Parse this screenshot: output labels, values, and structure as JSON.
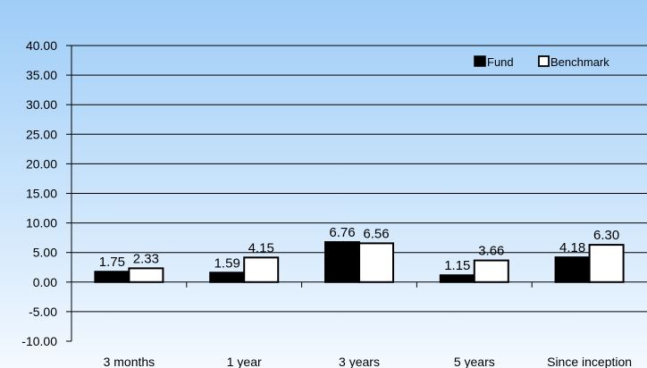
{
  "chart_data": {
    "type": "bar",
    "categories": [
      "3 months",
      "1 year",
      "3 years",
      "5 years",
      "Since inception"
    ],
    "series": [
      {
        "name": "Fund",
        "values": [
          1.75,
          1.59,
          6.76,
          1.15,
          4.18
        ],
        "labels": [
          "1.75",
          "1.59",
          "6.76",
          "1.15",
          "4.18"
        ],
        "color": "#000000"
      },
      {
        "name": "Benchmark",
        "values": [
          2.33,
          4.15,
          6.56,
          3.66,
          6.3
        ],
        "labels": [
          "2.33",
          "4.15",
          "6.56",
          "3.66",
          "6.30"
        ],
        "color": "#ffffff"
      }
    ],
    "ylim": [
      -10,
      40
    ],
    "yticks": [
      "40.00",
      "35.00",
      "30.00",
      "25.00",
      "20.00",
      "15.00",
      "10.00",
      "5.00",
      "0.00",
      "-5.00",
      "-10.00"
    ],
    "ytick_values": [
      40,
      35,
      30,
      25,
      20,
      15,
      10,
      5,
      0,
      -5,
      -10
    ],
    "legend_position": "top-right",
    "grid": "horizontal",
    "colors": {
      "gradient_top": "#9ecdf7",
      "gradient_bottom": "#f4f9ff",
      "gridline": "#000000",
      "bar_outline": "#000000"
    },
    "title": "",
    "xlabel": "",
    "ylabel": ""
  }
}
